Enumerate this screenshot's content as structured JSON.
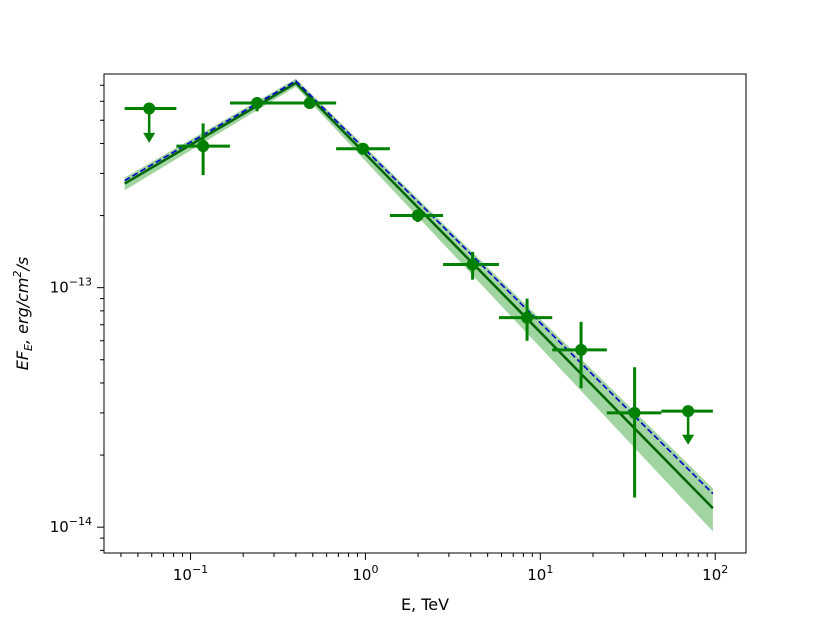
{
  "chart_data": {
    "type": "scatter",
    "title": "",
    "xlabel": "E, TeV",
    "ylabel_parts": {
      "base": "EF",
      "sub": "E",
      "rest1": ", erg/cm",
      "sup": "2",
      "rest2": "/s"
    },
    "x_scale": "log",
    "y_scale": "log",
    "xlim": [
      0.032,
      150
    ],
    "ylim": [
      7.8e-15,
      7.8e-13
    ],
    "grid": false,
    "legend": "none",
    "x_ticks": [
      {
        "value": 0.1,
        "base": "10",
        "exp": "−1"
      },
      {
        "value": 1,
        "base": "10",
        "exp": "0"
      },
      {
        "value": 10,
        "base": "10",
        "exp": "1"
      },
      {
        "value": 100,
        "base": "10",
        "exp": "2"
      }
    ],
    "y_ticks": [
      {
        "value": 1e-14,
        "base": "10",
        "exp": "−14"
      },
      {
        "value": 1e-13,
        "base": "10",
        "exp": "−13"
      }
    ],
    "colors": {
      "points": "#008000",
      "model": "#006400",
      "band": "#2ca02c",
      "dashed": "#0000cd"
    },
    "series": [
      {
        "kind": "flux_points",
        "points": [
          {
            "x": 0.118,
            "y": 3.9e-13,
            "xlo": 0.083,
            "xhi": 0.168,
            "ylo": 2.95e-13,
            "yhi": 4.85e-13
          },
          {
            "x": 0.24,
            "y": 5.9e-13,
            "xlo": 0.168,
            "xhi": 0.34,
            "ylo": 5.45e-13,
            "yhi": 6.25e-13
          },
          {
            "x": 0.48,
            "y": 5.9e-13,
            "xlo": 0.34,
            "xhi": 0.68,
            "ylo": 5.75e-13,
            "yhi": 6.05e-13
          },
          {
            "x": 0.97,
            "y": 3.8e-13,
            "xlo": 0.68,
            "xhi": 1.38,
            "ylo": 3.7e-13,
            "yhi": 3.9e-13
          },
          {
            "x": 1.99,
            "y": 2e-13,
            "xlo": 1.38,
            "xhi": 2.78,
            "ylo": 1.88e-13,
            "yhi": 2.12e-13
          },
          {
            "x": 4.1,
            "y": 1.25e-13,
            "xlo": 2.78,
            "xhi": 5.8,
            "ylo": 1.08e-13,
            "yhi": 1.41e-13
          },
          {
            "x": 8.4,
            "y": 7.5e-14,
            "xlo": 5.8,
            "xhi": 11.7,
            "ylo": 6e-14,
            "yhi": 9e-14
          },
          {
            "x": 17.1,
            "y": 5.5e-14,
            "xlo": 11.7,
            "xhi": 24.0,
            "ylo": 3.8e-14,
            "yhi": 7.2e-14
          },
          {
            "x": 34.6,
            "y": 3e-14,
            "xlo": 24.0,
            "xhi": 49.2,
            "ylo": 1.33e-14,
            "yhi": 4.65e-14
          }
        ]
      },
      {
        "kind": "upper_limits",
        "points": [
          {
            "x": 0.058,
            "y": 5.6e-13,
            "xlo": 0.042,
            "xhi": 0.083,
            "arrow_to": 4.1e-13
          },
          {
            "x": 70,
            "y": 3.05e-14,
            "xlo": 49.2,
            "xhi": 97,
            "arrow_to": 2.25e-14
          }
        ]
      },
      {
        "kind": "model_line",
        "x": [
          0.042,
          0.4,
          97
        ],
        "y": [
          2.72e-13,
          7.15e-13,
          1.2e-14
        ]
      },
      {
        "kind": "model_band",
        "x": [
          0.042,
          0.4,
          97
        ],
        "y_low": [
          2.55e-13,
          6.9e-13,
          9.6e-15
        ],
        "y_high": [
          2.88e-13,
          7.45e-13,
          1.45e-14
        ]
      },
      {
        "kind": "dashed_line",
        "x": [
          0.042,
          0.4,
          97
        ],
        "y": [
          2.8e-13,
          7.3e-13,
          1.38e-14
        ]
      }
    ]
  }
}
